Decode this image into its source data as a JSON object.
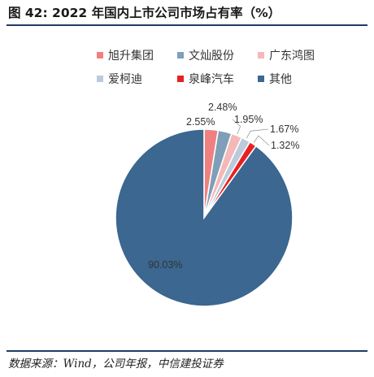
{
  "header": {
    "title": "图 42: 2022 年国内上市公司市场占有率（%）"
  },
  "footer": {
    "source": "数据来源：Wind，公司年报，中信建投证券"
  },
  "chart_data": {
    "type": "pie",
    "title": "图 42: 2022 年国内上市公司市场占有率（%）",
    "slices": [
      {
        "name": "旭升集团",
        "value": 2.55,
        "label": "2.55%",
        "color": "#f08080"
      },
      {
        "name": "文灿股份",
        "value": 2.48,
        "label": "2.48%",
        "color": "#7f9fb8"
      },
      {
        "name": "广东鸿图",
        "value": 1.95,
        "label": "1.95%",
        "color": "#f4b8b8"
      },
      {
        "name": "爱柯迪",
        "value": 1.67,
        "label": "1.67%",
        "color": "#bccbdc"
      },
      {
        "name": "泉峰汽车",
        "value": 1.32,
        "label": "1.32%",
        "color": "#e82020"
      },
      {
        "name": "其他",
        "value": 90.03,
        "label": "90.03%",
        "color": "#3b6790"
      }
    ],
    "legend_position": "top-right",
    "start_angle": "12 o'clock",
    "direction": "clockwise"
  }
}
